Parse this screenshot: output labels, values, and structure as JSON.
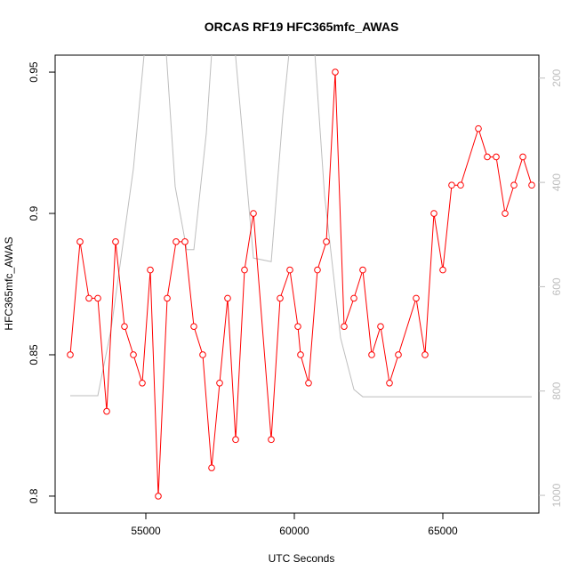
{
  "chart_data": {
    "type": "line",
    "title": "ORCAS RF19 HFC365mfc_AWAS",
    "x_label": "UTC Seconds",
    "y_label": "HFC365mfc_AWAS",
    "xlim": [
      51946,
      68234
    ],
    "xticks": [
      55000,
      60000,
      65000
    ],
    "ylim": [
      0.794,
      0.956
    ],
    "yticks": [
      0.8,
      0.85,
      0.9,
      0.95
    ],
    "y2lim": [
      1034,
      156
    ],
    "y2ticks": [
      200,
      400,
      600,
      800,
      1000
    ],
    "series": [
      {
        "color": "#ff0000",
        "markers": true,
        "x": [
          52455,
          52784,
          53084,
          53383,
          53683,
          53982,
          54281,
          54581,
          54880,
          55150,
          55419,
          55719,
          56018,
          56317,
          56617,
          56916,
          57216,
          57485,
          57754,
          58024,
          58323,
          58623,
          59222,
          59521,
          59850,
          60120,
          60210,
          60479,
          60778,
          61078,
          61377,
          61677,
          62006,
          62305,
          62605,
          62904,
          63204,
          63503,
          64102,
          64401,
          64701,
          65000,
          65299,
          65599,
          66198,
          66497,
          66797,
          67096,
          67396,
          67695,
          67994
        ],
        "values": [
          0.85,
          0.89,
          0.87,
          0.87,
          0.83,
          0.89,
          0.86,
          0.85,
          0.84,
          0.88,
          0.8,
          0.87,
          0.89,
          0.89,
          0.86,
          0.85,
          0.81,
          0.84,
          0.87,
          0.82,
          0.88,
          0.9,
          0.82,
          0.87,
          0.88,
          0.86,
          0.85,
          0.84,
          0.88,
          0.89,
          0.95,
          0.86,
          0.87,
          0.88,
          0.85,
          0.86,
          0.84,
          0.85,
          0.87,
          0.85,
          0.9,
          0.88,
          0.91,
          0.91,
          0.93,
          0.92,
          0.92,
          0.9,
          0.91,
          0.92,
          0.91
        ]
      },
      {
        "color": "#bebebe",
        "axis": "y2",
        "markers": false,
        "x": [
          52455,
          53383,
          53832,
          54581,
          55030,
          55629,
          55988,
          56377,
          56617,
          57036,
          57276,
          57934,
          58623,
          59222,
          59611,
          59910,
          60629,
          61018,
          61557,
          62006,
          62305,
          67994
        ],
        "values": [
          809,
          809,
          681,
          374,
          101,
          101,
          408,
          529,
          529,
          306,
          101,
          101,
          545,
          552,
          272,
          101,
          101,
          425,
          698,
          797,
          811,
          811
        ]
      }
    ]
  }
}
